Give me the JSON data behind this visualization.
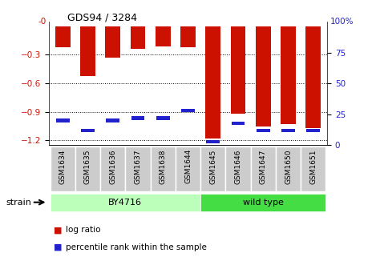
{
  "title": "GDS94 / 3284",
  "samples": [
    "GSM1634",
    "GSM1635",
    "GSM1636",
    "GSM1637",
    "GSM1638",
    "GSM1644",
    "GSM1645",
    "GSM1646",
    "GSM1647",
    "GSM1650",
    "GSM1651"
  ],
  "log_ratio": [
    -0.22,
    -0.52,
    -0.33,
    -0.24,
    -0.21,
    -0.22,
    -1.18,
    -0.92,
    -1.05,
    -1.03,
    -1.07
  ],
  "percentile": [
    20,
    12,
    20,
    22,
    22,
    28,
    3,
    18,
    12,
    12,
    12
  ],
  "bar_color": "#cc1100",
  "dot_color": "#2222cc",
  "ylim_left": [
    -1.25,
    0.05
  ],
  "ylim_right": [
    0,
    100
  ],
  "y_ticks_left": [
    0.0,
    -0.3,
    -0.6,
    -0.9,
    -1.2
  ],
  "y_ticks_right": [
    0,
    25,
    50,
    75,
    100
  ],
  "groups": [
    {
      "label": "BY4716",
      "start": 0,
      "end": 5,
      "color": "#bbffbb"
    },
    {
      "label": "wild type",
      "start": 6,
      "end": 10,
      "color": "#44dd44"
    }
  ],
  "strain_label": "strain",
  "legend_items": [
    {
      "label": "log ratio",
      "color": "#cc1100"
    },
    {
      "label": "percentile rank within the sample",
      "color": "#2222cc"
    }
  ],
  "bg_color": "#ffffff",
  "tick_label_color_left": "#cc1100",
  "tick_label_color_right": "#2222cc",
  "xtick_bg": "#cccccc"
}
